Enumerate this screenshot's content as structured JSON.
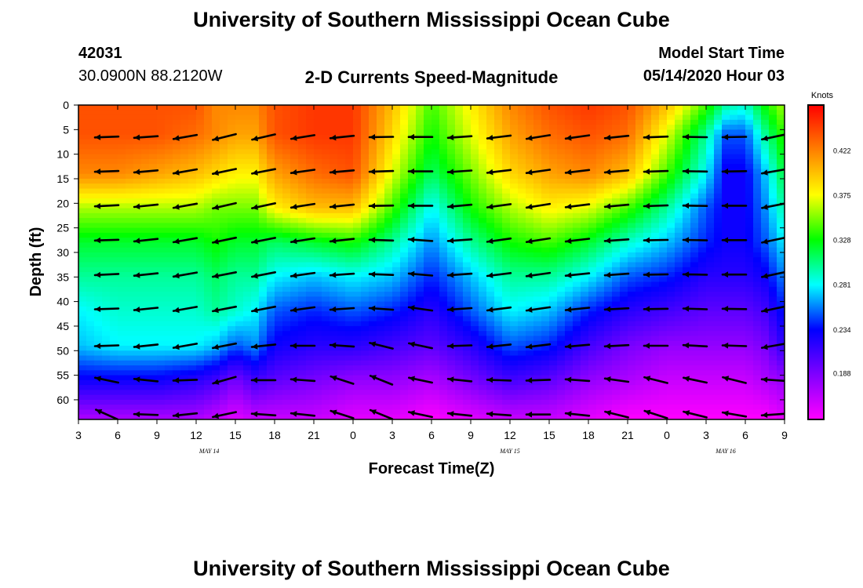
{
  "page": {
    "top_title": "University of Southern Mississippi Ocean Cube",
    "bottom_title": "University of Southern Mississippi Ocean Cube",
    "station_id": "42031",
    "station_coords": "30.0900N 88.2120W",
    "model_start_label": "Model Start Time",
    "model_start_value": "05/14/2020 Hour 03"
  },
  "chart_data": {
    "type": "heatmap",
    "title": "2-D Currents Speed-Magnitude",
    "xlabel": "Forecast Time(Z)",
    "ylabel": "Depth (ft)",
    "x_tick_labels": [
      "3",
      "6",
      "9",
      "12",
      "15",
      "18",
      "21",
      "0",
      "3",
      "6",
      "9",
      "12",
      "15",
      "18",
      "21",
      "0",
      "3",
      "6",
      "9"
    ],
    "x_tick_hours": [
      0,
      3,
      6,
      9,
      12,
      15,
      18,
      21,
      24,
      27,
      30,
      33,
      36,
      39,
      42,
      45,
      48,
      51,
      54
    ],
    "x_range_hours": [
      0,
      54
    ],
    "date_labels": [
      {
        "text": "MAY 14",
        "hour": 10
      },
      {
        "text": "MAY 15",
        "hour": 33
      },
      {
        "text": "MAY 16",
        "hour": 49.5
      }
    ],
    "y_ticks": [
      0,
      5,
      10,
      15,
      20,
      25,
      30,
      35,
      40,
      45,
      50,
      55,
      60
    ],
    "y_range_ft": [
      0,
      64
    ],
    "y_inverted": true,
    "colorbar": {
      "unit": "Knots",
      "ticks": [
        0.188,
        0.234,
        0.281,
        0.328,
        0.375,
        0.422
      ],
      "range": [
        0.14,
        0.47
      ],
      "colors": [
        "#ff00ff",
        "#8000ff",
        "#0000ff",
        "#00ffff",
        "#00ff00",
        "#ffff00",
        "#ff8000",
        "#ff0000"
      ]
    },
    "speed_time_hours": [
      0,
      3,
      6,
      9,
      10.5,
      12,
      13.5,
      15,
      18,
      21,
      24,
      27,
      30,
      33,
      36,
      39,
      42,
      45,
      48,
      49.5,
      51,
      52.5,
      54
    ],
    "speed_depth_ft": [
      0,
      6,
      14,
      21,
      28,
      35,
      42,
      49,
      56,
      64
    ],
    "speed_knots": [
      [
        0.44,
        0.44,
        0.44,
        0.44,
        0.42,
        0.42,
        0.42,
        0.44,
        0.45,
        0.45,
        0.4,
        0.34,
        0.38,
        0.42,
        0.44,
        0.45,
        0.44,
        0.4,
        0.34,
        0.3,
        0.29,
        0.33,
        0.36
      ],
      [
        0.44,
        0.44,
        0.44,
        0.43,
        0.42,
        0.41,
        0.41,
        0.44,
        0.45,
        0.45,
        0.39,
        0.33,
        0.37,
        0.41,
        0.43,
        0.44,
        0.43,
        0.37,
        0.3,
        0.25,
        0.25,
        0.3,
        0.34
      ],
      [
        0.42,
        0.42,
        0.41,
        0.4,
        0.39,
        0.38,
        0.38,
        0.41,
        0.43,
        0.44,
        0.37,
        0.31,
        0.35,
        0.39,
        0.41,
        0.42,
        0.4,
        0.34,
        0.28,
        0.23,
        0.23,
        0.27,
        0.32
      ],
      [
        0.36,
        0.36,
        0.36,
        0.36,
        0.35,
        0.35,
        0.35,
        0.38,
        0.4,
        0.4,
        0.34,
        0.28,
        0.33,
        0.36,
        0.38,
        0.37,
        0.34,
        0.3,
        0.25,
        0.23,
        0.23,
        0.26,
        0.3
      ],
      [
        0.32,
        0.32,
        0.32,
        0.32,
        0.33,
        0.32,
        0.32,
        0.31,
        0.32,
        0.33,
        0.3,
        0.26,
        0.3,
        0.33,
        0.34,
        0.32,
        0.29,
        0.27,
        0.24,
        0.23,
        0.23,
        0.25,
        0.28
      ],
      [
        0.3,
        0.3,
        0.3,
        0.3,
        0.31,
        0.3,
        0.3,
        0.28,
        0.27,
        0.28,
        0.27,
        0.24,
        0.27,
        0.3,
        0.3,
        0.28,
        0.25,
        0.24,
        0.22,
        0.22,
        0.22,
        0.23,
        0.26
      ],
      [
        0.28,
        0.29,
        0.29,
        0.29,
        0.3,
        0.29,
        0.28,
        0.25,
        0.24,
        0.25,
        0.24,
        0.22,
        0.25,
        0.28,
        0.27,
        0.24,
        0.22,
        0.21,
        0.2,
        0.2,
        0.2,
        0.21,
        0.24
      ],
      [
        0.27,
        0.28,
        0.28,
        0.28,
        0.27,
        0.25,
        0.26,
        0.23,
        0.22,
        0.22,
        0.21,
        0.2,
        0.22,
        0.25,
        0.24,
        0.21,
        0.19,
        0.18,
        0.18,
        0.18,
        0.18,
        0.19,
        0.22
      ],
      [
        0.23,
        0.23,
        0.23,
        0.22,
        0.21,
        0.19,
        0.21,
        0.2,
        0.19,
        0.18,
        0.18,
        0.17,
        0.19,
        0.21,
        0.2,
        0.18,
        0.17,
        0.16,
        0.16,
        0.16,
        0.16,
        0.17,
        0.18
      ],
      [
        0.17,
        0.17,
        0.17,
        0.17,
        0.16,
        0.15,
        0.16,
        0.16,
        0.16,
        0.15,
        0.15,
        0.14,
        0.15,
        0.16,
        0.16,
        0.15,
        0.14,
        0.14,
        0.14,
        0.14,
        0.14,
        0.14,
        0.15
      ]
    ],
    "vector_time_hours": [
      1.5,
      4.5,
      7.5,
      10.5,
      13.5,
      16.5,
      19.5,
      22.5,
      25.5,
      28.5,
      31.5,
      34.5,
      37.5,
      40.5,
      43.5,
      46.5,
      49.5,
      52.5
    ],
    "vector_depth_ft": [
      6.5,
      13.5,
      20.5,
      27.5,
      34.5,
      41.5,
      49,
      56,
      63
    ],
    "vector_direction_note": "angle in degrees: 180 = westward, negative = toward north-west",
    "vector_angles_deg": [
      [
        182,
        184,
        190,
        194,
        193,
        189,
        186,
        181,
        180,
        184,
        187,
        189,
        188,
        186,
        182,
        179,
        181,
        192
      ],
      [
        182,
        185,
        190,
        192,
        191,
        188,
        185,
        182,
        180,
        184,
        187,
        188,
        187,
        185,
        182,
        179,
        181,
        190
      ],
      [
        183,
        186,
        190,
        193,
        192,
        189,
        186,
        181,
        180,
        185,
        188,
        189,
        187,
        185,
        182,
        179,
        180,
        191
      ],
      [
        182,
        186,
        190,
        192,
        191,
        189,
        186,
        178,
        176,
        184,
        188,
        189,
        187,
        184,
        181,
        179,
        180,
        192
      ],
      [
        183,
        186,
        190,
        191,
        191,
        188,
        184,
        178,
        175,
        184,
        187,
        188,
        186,
        184,
        181,
        179,
        180,
        192
      ],
      [
        182,
        186,
        190,
        191,
        191,
        188,
        184,
        176,
        172,
        184,
        187,
        188,
        186,
        183,
        181,
        178,
        179,
        192
      ],
      [
        182,
        186,
        190,
        191,
        186,
        180,
        176,
        166,
        168,
        182,
        186,
        187,
        185,
        183,
        180,
        177,
        178,
        190
      ],
      [
        168,
        174,
        182,
        196,
        180,
        176,
        162,
        158,
        168,
        174,
        178,
        182,
        176,
        172,
        166,
        168,
        166,
        176
      ],
      [
        156,
        178,
        186,
        192,
        176,
        174,
        162,
        158,
        168,
        174,
        176,
        180,
        174,
        166,
        162,
        166,
        170,
        184
      ]
    ]
  }
}
